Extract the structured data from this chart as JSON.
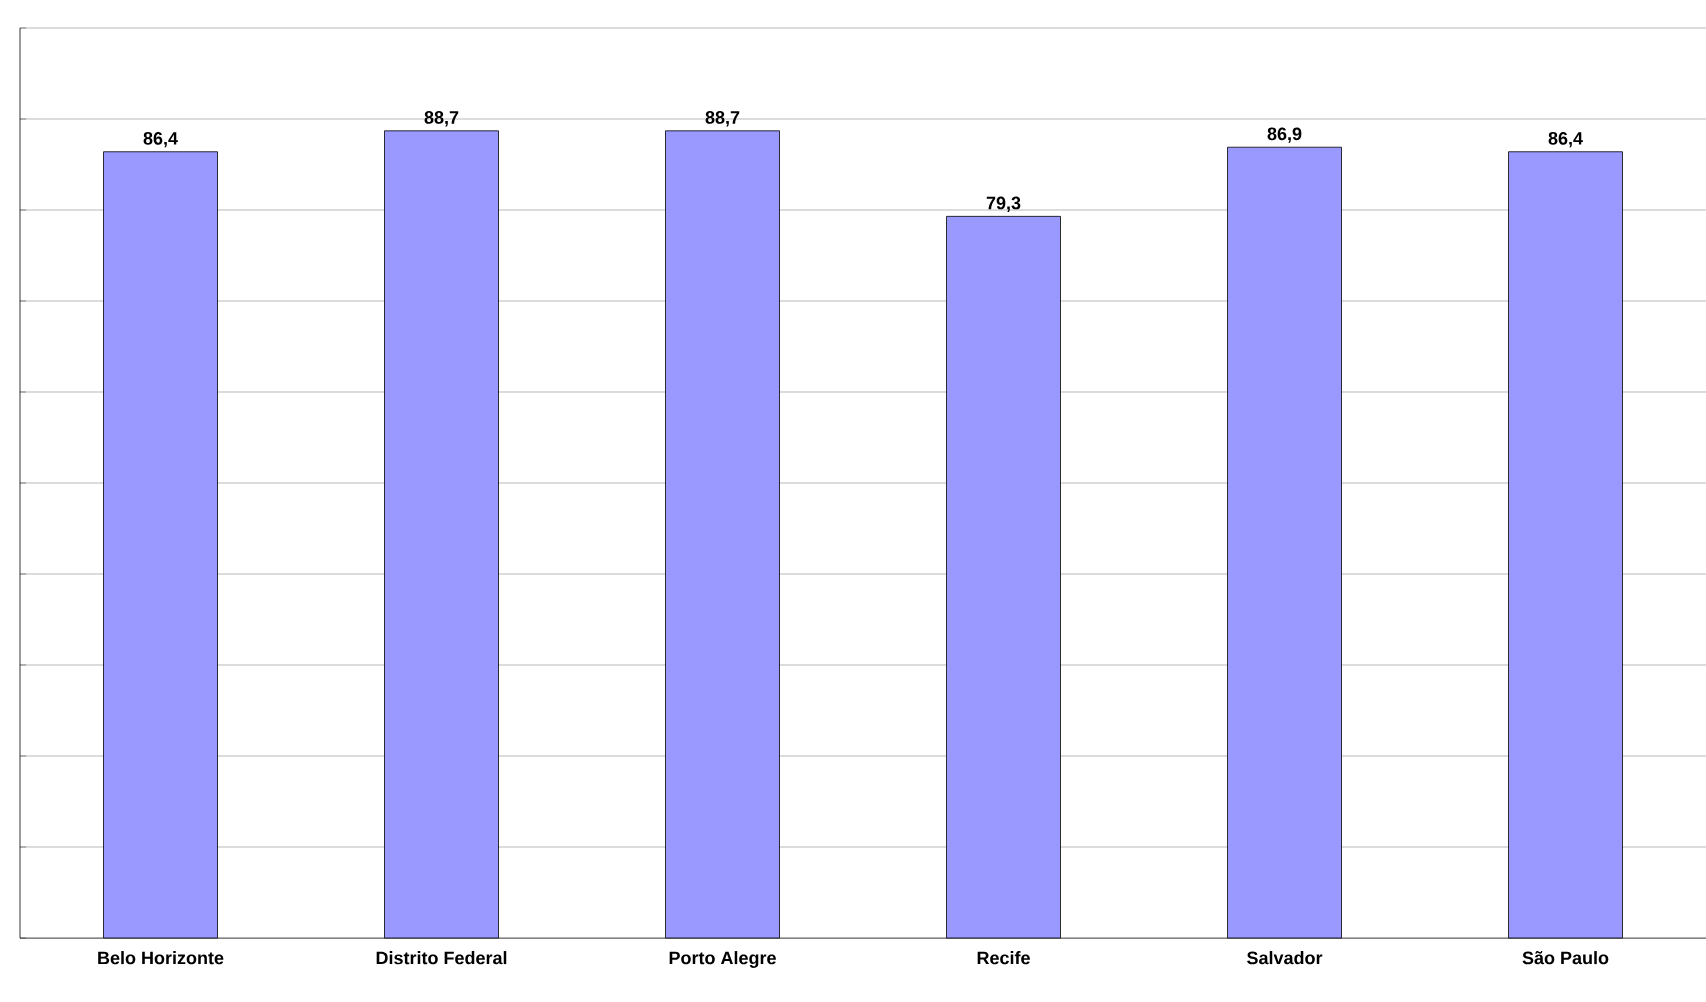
{
  "chart_data": {
    "type": "bar",
    "categories": [
      "Belo Horizonte",
      "Distrito Federal",
      "Porto Alegre",
      "Recife",
      "Salvador",
      "São Paulo"
    ],
    "values": [
      86.4,
      88.7,
      88.7,
      79.3,
      86.9,
      86.4
    ],
    "value_labels": [
      "86,4",
      "88,7",
      "88,7",
      "79,3",
      "86,9",
      "86,4"
    ],
    "color": "#9999ff",
    "ylim": [
      0,
      100
    ],
    "yticks": [
      {
        "value": 0,
        "label": null
      },
      {
        "value": 10,
        "label": null
      },
      {
        "value": 20,
        "label": null
      },
      {
        "value": 30,
        "label": null
      },
      {
        "value": 40,
        "label": null
      },
      {
        "value": 50,
        "label": null
      },
      {
        "value": 60,
        "label": null
      },
      {
        "value": 70,
        "label": null
      },
      {
        "value": 80,
        "label": null
      },
      {
        "value": 90,
        "label": null
      },
      {
        "value": 100,
        "label": null
      }
    ],
    "tick_labels": "x",
    "grid": "y"
  }
}
